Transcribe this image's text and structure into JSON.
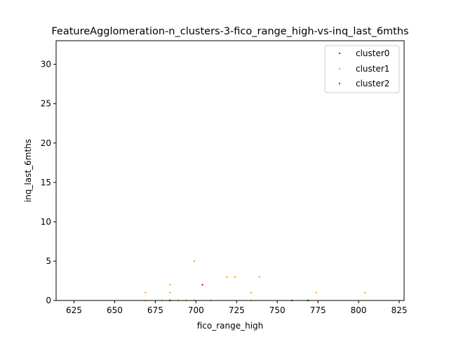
{
  "chart_data": {
    "type": "scatter",
    "title": "FeatureAgglomeration-n_clusters-3-fico_range_high-vs-inq_last_6mths",
    "xlabel": "fico_range_high",
    "ylabel": "inq_last_6mths",
    "xlim": [
      614,
      828
    ],
    "ylim": [
      0,
      33
    ],
    "xticks": [
      625,
      650,
      675,
      700,
      725,
      750,
      775,
      800,
      825
    ],
    "yticks": [
      0,
      5,
      10,
      15,
      20,
      25,
      30
    ],
    "grid": false,
    "legend_position": "top-right",
    "series": [
      {
        "name": "cluster0",
        "color": "#ff0000",
        "points": [
          [
            704,
            2
          ],
          [
            759,
            0
          ]
        ]
      },
      {
        "name": "cluster1",
        "color": "#ffa500",
        "points": [
          [
            669,
            1
          ],
          [
            669,
            0
          ],
          [
            679,
            0
          ],
          [
            684,
            2
          ],
          [
            684,
            1
          ],
          [
            684,
            0
          ],
          [
            689,
            0
          ],
          [
            694,
            0
          ],
          [
            699,
            5
          ],
          [
            699,
            0
          ],
          [
            709,
            0
          ],
          [
            719,
            3
          ],
          [
            724,
            3
          ],
          [
            734,
            1
          ],
          [
            734,
            0
          ],
          [
            739,
            3
          ],
          [
            769,
            0
          ],
          [
            774,
            1
          ],
          [
            804,
            1
          ]
        ]
      },
      {
        "name": "cluster2",
        "color": "#008000",
        "points": [
          [
            684,
            0
          ],
          [
            769,
            0
          ]
        ]
      }
    ]
  }
}
